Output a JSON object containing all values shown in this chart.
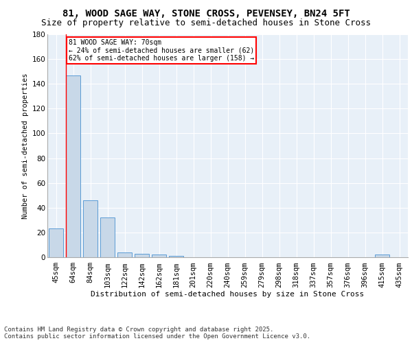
{
  "title1": "81, WOOD SAGE WAY, STONE CROSS, PEVENSEY, BN24 5FT",
  "title2": "Size of property relative to semi-detached houses in Stone Cross",
  "xlabel": "Distribution of semi-detached houses by size in Stone Cross",
  "ylabel": "Number of semi-detached properties",
  "categories": [
    "45sqm",
    "64sqm",
    "84sqm",
    "103sqm",
    "122sqm",
    "142sqm",
    "162sqm",
    "181sqm",
    "201sqm",
    "220sqm",
    "240sqm",
    "259sqm",
    "279sqm",
    "298sqm",
    "318sqm",
    "337sqm",
    "357sqm",
    "376sqm",
    "396sqm",
    "415sqm",
    "435sqm"
  ],
  "values": [
    23,
    147,
    46,
    32,
    4,
    3,
    2,
    1,
    0,
    0,
    0,
    0,
    0,
    0,
    0,
    0,
    0,
    0,
    0,
    2,
    0
  ],
  "bar_color": "#c8d8e8",
  "bar_edge_color": "#5b9bd5",
  "property_sqm": "70sqm",
  "pct_smaller": 24,
  "count_smaller": 62,
  "pct_larger": 62,
  "count_larger": 158,
  "annotation_line1": "81 WOOD SAGE WAY: 70sqm",
  "annotation_line2": "← 24% of semi-detached houses are smaller (62)",
  "annotation_line3": "62% of semi-detached houses are larger (158) →",
  "ylim": [
    0,
    180
  ],
  "yticks": [
    0,
    20,
    40,
    60,
    80,
    100,
    120,
    140,
    160,
    180
  ],
  "background_color": "#e8f0f8",
  "footer": "Contains HM Land Registry data © Crown copyright and database right 2025.\nContains public sector information licensed under the Open Government Licence v3.0.",
  "title1_fontsize": 10,
  "title2_fontsize": 9,
  "axis_fontsize": 7.5,
  "annotation_fontsize": 7,
  "footer_fontsize": 6.5,
  "ylabel_fontsize": 7.5
}
